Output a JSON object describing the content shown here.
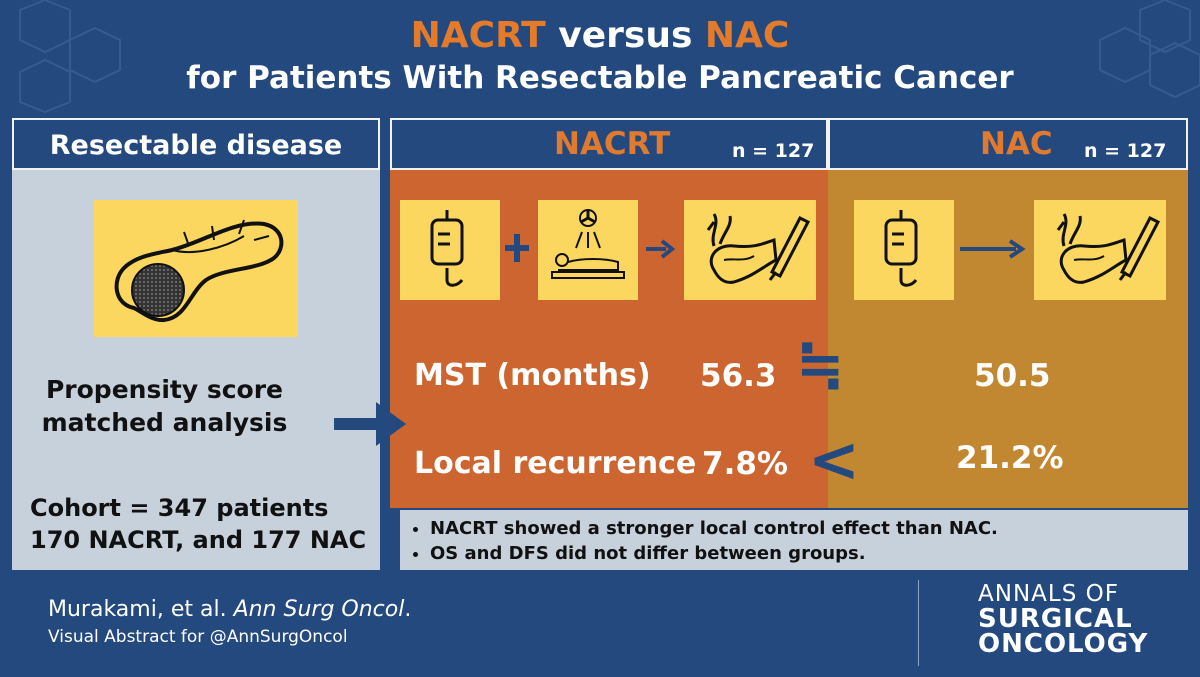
{
  "title": {
    "term1": "NACRT",
    "versus": " versus ",
    "term2": "NAC",
    "line2": "for Patients With Resectable Pancreatic Cancer"
  },
  "left_panel": {
    "header": "Resectable disease",
    "method_line1": "Propensity score",
    "method_line2": "matched analysis",
    "cohort_line1": "Cohort = 347 patients",
    "cohort_line2": "170 NACRT, and 177 NAC"
  },
  "nacrt": {
    "name": "NACRT",
    "n": "n = 127",
    "mst": "56.3",
    "local_recurrence": "7.8%"
  },
  "nac": {
    "name": "NAC",
    "n": "n = 127",
    "mst": "50.5",
    "local_recurrence": "21.2%"
  },
  "rows": {
    "mst_label": "MST (months)",
    "recurrence_label": "Local recurrence"
  },
  "comparisons": {
    "mst_symbol": "≒",
    "recurrence_symbol": "<"
  },
  "findings": [
    "NACRT showed a stronger local control effect than NAC.",
    "OS and DFS did not differ between groups."
  ],
  "footer": {
    "citation_authors": "Murakami, et al. ",
    "citation_journal": "Ann Surg Oncol",
    "citation_end": ".",
    "visual_abstract": "Visual Abstract for @AnnSurgOncol"
  },
  "brand": {
    "line1": "ANNALS OF",
    "line2": "SURGICAL",
    "line3": "ONCOLOGY"
  },
  "icons": [
    "iv-bag-icon",
    "plus-icon",
    "radiation-therapy-icon",
    "arrow-right-icon",
    "pancreas-surgery-icon",
    "pancreas-tumor-icon"
  ],
  "colors": {
    "background": "#24497e",
    "nacrt": "#cd6530",
    "nac": "#c28731",
    "panel": "#c7d1dc",
    "icon_box": "#fbd75f",
    "accent_orange": "#e47b2b"
  }
}
